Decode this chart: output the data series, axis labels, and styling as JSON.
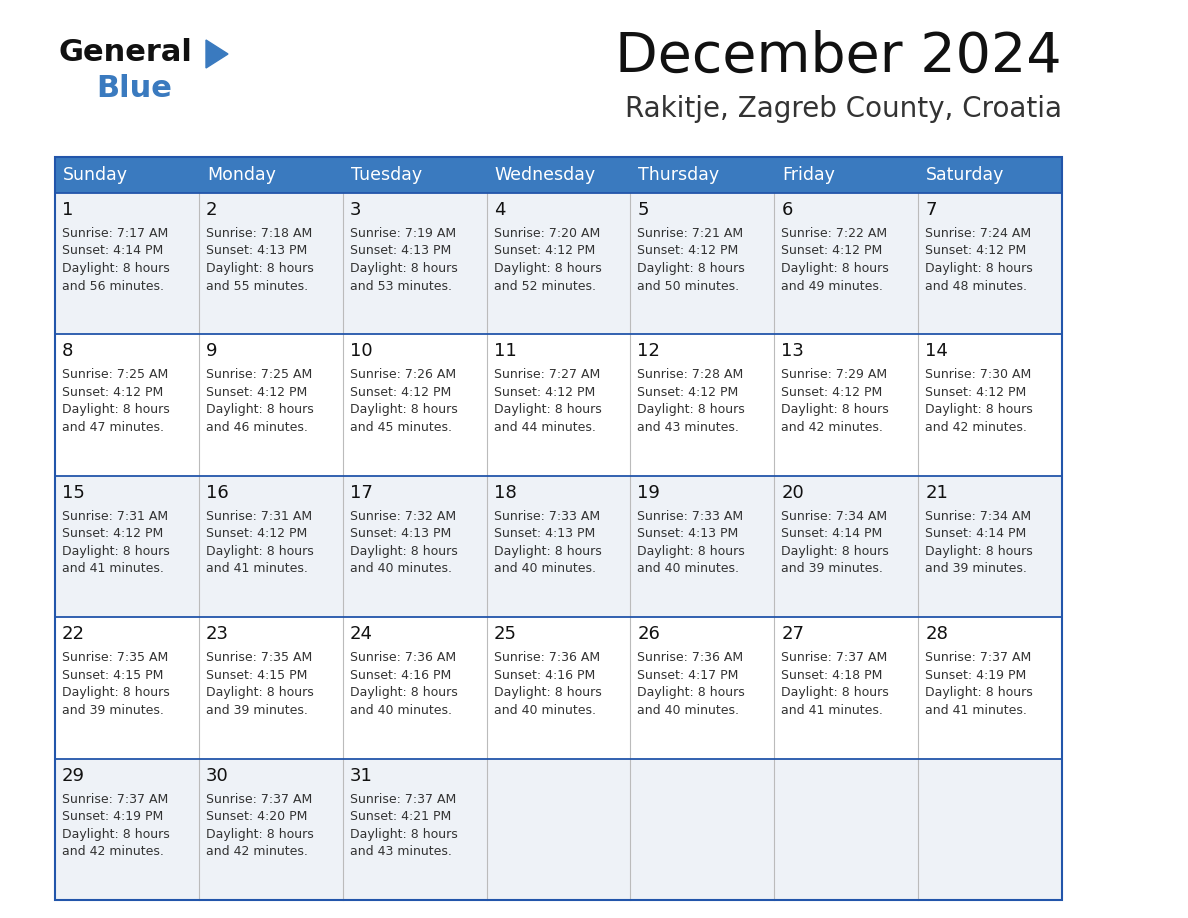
{
  "title": "December 2024",
  "subtitle": "Rakitje, Zagreb County, Croatia",
  "header_bg": "#3a7abf",
  "header_text": "#ffffff",
  "row_bg_odd": "#eef2f7",
  "row_bg_even": "#ffffff",
  "grid_line_color": "#2255aa",
  "cell_text_color": "#333333",
  "day_num_color": "#111111",
  "days_of_week": [
    "Sunday",
    "Monday",
    "Tuesday",
    "Wednesday",
    "Thursday",
    "Friday",
    "Saturday"
  ],
  "calendar": [
    [
      {
        "day": 1,
        "sunrise": "7:17 AM",
        "sunset": "4:14 PM",
        "daylight": "8 hours",
        "daylight2": "and 56 minutes."
      },
      {
        "day": 2,
        "sunrise": "7:18 AM",
        "sunset": "4:13 PM",
        "daylight": "8 hours",
        "daylight2": "and 55 minutes."
      },
      {
        "day": 3,
        "sunrise": "7:19 AM",
        "sunset": "4:13 PM",
        "daylight": "8 hours",
        "daylight2": "and 53 minutes."
      },
      {
        "day": 4,
        "sunrise": "7:20 AM",
        "sunset": "4:12 PM",
        "daylight": "8 hours",
        "daylight2": "and 52 minutes."
      },
      {
        "day": 5,
        "sunrise": "7:21 AM",
        "sunset": "4:12 PM",
        "daylight": "8 hours",
        "daylight2": "and 50 minutes."
      },
      {
        "day": 6,
        "sunrise": "7:22 AM",
        "sunset": "4:12 PM",
        "daylight": "8 hours",
        "daylight2": "and 49 minutes."
      },
      {
        "day": 7,
        "sunrise": "7:24 AM",
        "sunset": "4:12 PM",
        "daylight": "8 hours",
        "daylight2": "and 48 minutes."
      }
    ],
    [
      {
        "day": 8,
        "sunrise": "7:25 AM",
        "sunset": "4:12 PM",
        "daylight": "8 hours",
        "daylight2": "and 47 minutes."
      },
      {
        "day": 9,
        "sunrise": "7:25 AM",
        "sunset": "4:12 PM",
        "daylight": "8 hours",
        "daylight2": "and 46 minutes."
      },
      {
        "day": 10,
        "sunrise": "7:26 AM",
        "sunset": "4:12 PM",
        "daylight": "8 hours",
        "daylight2": "and 45 minutes."
      },
      {
        "day": 11,
        "sunrise": "7:27 AM",
        "sunset": "4:12 PM",
        "daylight": "8 hours",
        "daylight2": "and 44 minutes."
      },
      {
        "day": 12,
        "sunrise": "7:28 AM",
        "sunset": "4:12 PM",
        "daylight": "8 hours",
        "daylight2": "and 43 minutes."
      },
      {
        "day": 13,
        "sunrise": "7:29 AM",
        "sunset": "4:12 PM",
        "daylight": "8 hours",
        "daylight2": "and 42 minutes."
      },
      {
        "day": 14,
        "sunrise": "7:30 AM",
        "sunset": "4:12 PM",
        "daylight": "8 hours",
        "daylight2": "and 42 minutes."
      }
    ],
    [
      {
        "day": 15,
        "sunrise": "7:31 AM",
        "sunset": "4:12 PM",
        "daylight": "8 hours",
        "daylight2": "and 41 minutes."
      },
      {
        "day": 16,
        "sunrise": "7:31 AM",
        "sunset": "4:12 PM",
        "daylight": "8 hours",
        "daylight2": "and 41 minutes."
      },
      {
        "day": 17,
        "sunrise": "7:32 AM",
        "sunset": "4:13 PM",
        "daylight": "8 hours",
        "daylight2": "and 40 minutes."
      },
      {
        "day": 18,
        "sunrise": "7:33 AM",
        "sunset": "4:13 PM",
        "daylight": "8 hours",
        "daylight2": "and 40 minutes."
      },
      {
        "day": 19,
        "sunrise": "7:33 AM",
        "sunset": "4:13 PM",
        "daylight": "8 hours",
        "daylight2": "and 40 minutes."
      },
      {
        "day": 20,
        "sunrise": "7:34 AM",
        "sunset": "4:14 PM",
        "daylight": "8 hours",
        "daylight2": "and 39 minutes."
      },
      {
        "day": 21,
        "sunrise": "7:34 AM",
        "sunset": "4:14 PM",
        "daylight": "8 hours",
        "daylight2": "and 39 minutes."
      }
    ],
    [
      {
        "day": 22,
        "sunrise": "7:35 AM",
        "sunset": "4:15 PM",
        "daylight": "8 hours",
        "daylight2": "and 39 minutes."
      },
      {
        "day": 23,
        "sunrise": "7:35 AM",
        "sunset": "4:15 PM",
        "daylight": "8 hours",
        "daylight2": "and 39 minutes."
      },
      {
        "day": 24,
        "sunrise": "7:36 AM",
        "sunset": "4:16 PM",
        "daylight": "8 hours",
        "daylight2": "and 40 minutes."
      },
      {
        "day": 25,
        "sunrise": "7:36 AM",
        "sunset": "4:16 PM",
        "daylight": "8 hours",
        "daylight2": "and 40 minutes."
      },
      {
        "day": 26,
        "sunrise": "7:36 AM",
        "sunset": "4:17 PM",
        "daylight": "8 hours",
        "daylight2": "and 40 minutes."
      },
      {
        "day": 27,
        "sunrise": "7:37 AM",
        "sunset": "4:18 PM",
        "daylight": "8 hours",
        "daylight2": "and 41 minutes."
      },
      {
        "day": 28,
        "sunrise": "7:37 AM",
        "sunset": "4:19 PM",
        "daylight": "8 hours",
        "daylight2": "and 41 minutes."
      }
    ],
    [
      {
        "day": 29,
        "sunrise": "7:37 AM",
        "sunset": "4:19 PM",
        "daylight": "8 hours",
        "daylight2": "and 42 minutes."
      },
      {
        "day": 30,
        "sunrise": "7:37 AM",
        "sunset": "4:20 PM",
        "daylight": "8 hours",
        "daylight2": "and 42 minutes."
      },
      {
        "day": 31,
        "sunrise": "7:37 AM",
        "sunset": "4:21 PM",
        "daylight": "8 hours",
        "daylight2": "and 43 minutes."
      },
      null,
      null,
      null,
      null
    ]
  ],
  "logo_general_color": "#111111",
  "logo_blue_color": "#3a7abf",
  "logo_triangle_color": "#3a7abf"
}
